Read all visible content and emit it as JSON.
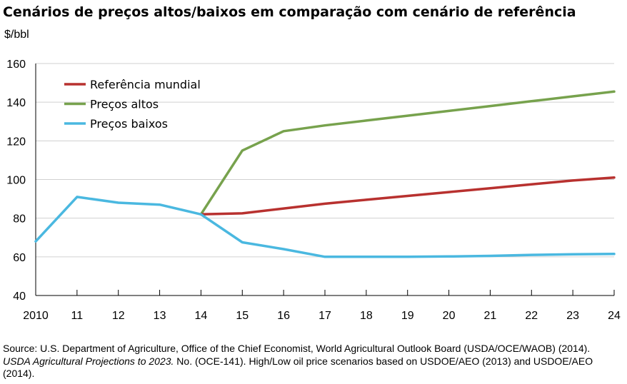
{
  "chart_data": {
    "type": "line",
    "title": "Cenários de preços altos/baixos em comparação com cenário de referência",
    "ylabel": "$/bbl",
    "xlabel": "",
    "x_tick_labels": [
      "2010",
      "11",
      "12",
      "13",
      "14",
      "15",
      "16",
      "17",
      "18",
      "19",
      "20",
      "21",
      "22",
      "23",
      "24"
    ],
    "x": [
      2010,
      2011,
      2012,
      2013,
      2014,
      2015,
      2016,
      2017,
      2018,
      2019,
      2020,
      2021,
      2022,
      2023,
      2024
    ],
    "xlim": [
      2010,
      2024
    ],
    "ylim": [
      40,
      160
    ],
    "yticks": [
      40,
      60,
      80,
      100,
      120,
      140,
      160
    ],
    "grid": "horizontal",
    "legend_position": "top-left",
    "series": [
      {
        "name": "Referência mundial",
        "color": "#b8312f",
        "x": [
          2014,
          2015,
          2016,
          2017,
          2018,
          2019,
          2020,
          2021,
          2022,
          2023,
          2024
        ],
        "values": [
          82,
          82.5,
          85,
          87.5,
          89.5,
          91.5,
          93.5,
          95.5,
          97.5,
          99.5,
          101
        ]
      },
      {
        "name": "Preços altos",
        "color": "#77a24d",
        "x": [
          2014,
          2015,
          2016,
          2017,
          2018,
          2019,
          2020,
          2021,
          2022,
          2023,
          2024
        ],
        "values": [
          82,
          115,
          125,
          128,
          130.5,
          133,
          135.5,
          138,
          140.5,
          143,
          145.5
        ]
      },
      {
        "name": "Preços baixos",
        "color": "#4ab8e0",
        "x": [
          2010,
          2011,
          2012,
          2013,
          2014,
          2015,
          2016,
          2017,
          2018,
          2019,
          2020,
          2021,
          2022,
          2023,
          2024
        ],
        "values": [
          68,
          91,
          88,
          87,
          82,
          67.5,
          64,
          60,
          60,
          60,
          60.2,
          60.5,
          61,
          61.3,
          61.5
        ]
      }
    ]
  },
  "source": {
    "part1": "Source: U.S. Department of Agriculture, Office of the Chief Economist, World Agricultural Outlook Board (USDA/OCE/WAOB) (2014). ",
    "italic": "USDA Agricultural Projections to 2023.",
    "part2": " No. (OCE-141). High/Low oil price scenarios based on USDOE/AEO (2013) and USDOE/AEO (2014)."
  }
}
